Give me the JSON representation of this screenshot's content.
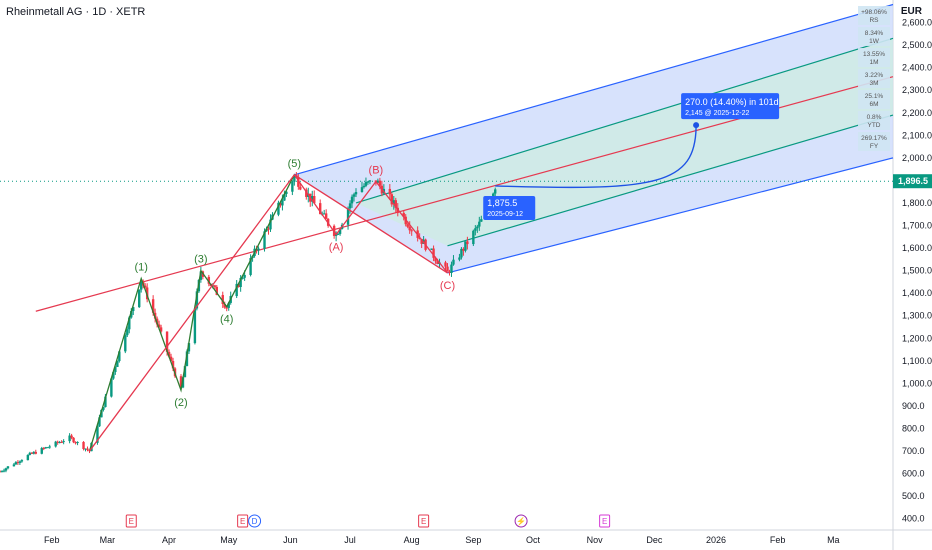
{
  "header": {
    "symbol": "Rheinmetall AG · 1D · XETR",
    "currency": "EUR"
  },
  "colors": {
    "up": "#089981",
    "down": "#f23645",
    "wave_green": "#2e7d32",
    "wave_red": "#e53950",
    "channel_blue": "#2962ff",
    "channel_fill": "#c9d8fb",
    "median_red": "#e53950",
    "inner_green": "#089981"
  },
  "chart_data": {
    "type": "candlestick",
    "title": "Rheinmetall AG · 1D · XETR",
    "y_axis": {
      "scale": "linear",
      "range": [
        350,
        2700
      ],
      "ticks": [
        400,
        500,
        600,
        700,
        800,
        900,
        1000,
        1100,
        1200,
        1300,
        1400,
        1500,
        1600,
        1700,
        1800,
        1900,
        2000,
        2100,
        2200,
        2300,
        2400,
        2500,
        2600
      ],
      "tick_labels": [
        "400.0",
        "500.0",
        "600.0",
        "700.0",
        "800.0",
        "900.0",
        "1,000.0",
        "1,100.0",
        "1,200.0",
        "1,300.0",
        "1,400.0",
        "1,500.0",
        "1,600.0",
        "1,700.0",
        "1,800.0",
        "1,900.0",
        "2,000.0",
        "2,100.0",
        "2,200.0",
        "2,300.0",
        "2,400.0",
        "2,500.0",
        "2,600.0"
      ]
    },
    "x_axis": {
      "range": [
        "2025-01-06",
        "2026-03-31"
      ],
      "ticks": [
        {
          "date": "2025-02-01",
          "label": "Feb"
        },
        {
          "date": "2025-03-01",
          "label": "Mar"
        },
        {
          "date": "2025-04-01",
          "label": "Apr"
        },
        {
          "date": "2025-05-01",
          "label": "May"
        },
        {
          "date": "2025-06-01",
          "label": "Jun"
        },
        {
          "date": "2025-07-01",
          "label": "Jul"
        },
        {
          "date": "2025-08-01",
          "label": "Aug"
        },
        {
          "date": "2025-09-01",
          "label": "Sep"
        },
        {
          "date": "2025-10-01",
          "label": "Oct"
        },
        {
          "date": "2025-11-01",
          "label": "Nov"
        },
        {
          "date": "2025-12-01",
          "label": "Dec"
        },
        {
          "date": "2026-01-01",
          "label": "2026"
        },
        {
          "date": "2026-02-01",
          "label": "Feb"
        },
        {
          "date": "2026-03-01",
          "label": "Ma"
        }
      ]
    },
    "last_price": {
      "value": 1896.5,
      "label": "1,896.5"
    },
    "price_anchors": [
      {
        "date": "2025-01-06",
        "value": 610
      },
      {
        "date": "2025-01-20",
        "value": 680
      },
      {
        "date": "2025-02-10",
        "value": 760
      },
      {
        "date": "2025-02-20",
        "value": 700
      },
      {
        "date": "2025-03-18",
        "value": 1460
      },
      {
        "date": "2025-04-07",
        "value": 970
      },
      {
        "date": "2025-04-17",
        "value": 1500
      },
      {
        "date": "2025-04-30",
        "value": 1340
      },
      {
        "date": "2025-06-03",
        "value": 1920
      },
      {
        "date": "2025-06-24",
        "value": 1660
      },
      {
        "date": "2025-07-04",
        "value": 1860
      },
      {
        "date": "2025-07-14",
        "value": 1900
      },
      {
        "date": "2025-07-31",
        "value": 1700
      },
      {
        "date": "2025-08-19",
        "value": 1490
      },
      {
        "date": "2025-09-05",
        "value": 1720
      },
      {
        "date": "2025-09-12",
        "value": 1876
      }
    ],
    "waves": [
      {
        "name": "impulse",
        "color": "wave_green",
        "points": [
          {
            "date": "2025-02-20",
            "value": 700
          },
          {
            "date": "2025-03-18",
            "value": 1465,
            "label": "(1)"
          },
          {
            "date": "2025-04-07",
            "value": 970,
            "label": "(2)"
          },
          {
            "date": "2025-04-17",
            "value": 1500,
            "label": "(3)"
          },
          {
            "date": "2025-04-30",
            "value": 1340,
            "label": "(4)"
          },
          {
            "date": "2025-06-03",
            "value": 1925,
            "label": "(5)"
          }
        ]
      },
      {
        "name": "correction",
        "color": "wave_red",
        "points": [
          {
            "date": "2025-06-03",
            "value": 1925
          },
          {
            "date": "2025-06-24",
            "value": 1660,
            "label": "(A)"
          },
          {
            "date": "2025-07-14",
            "value": 1895,
            "label": "(B)"
          },
          {
            "date": "2025-08-19",
            "value": 1490,
            "label": "(C)"
          }
        ]
      },
      {
        "name": "fork-frame",
        "color": "wave_red",
        "points": [
          {
            "date": "2025-02-20",
            "value": 700
          },
          {
            "date": "2025-06-03",
            "value": 1925
          },
          {
            "date": "2025-08-19",
            "value": 1490
          }
        ]
      }
    ],
    "pitchfork": {
      "median": [
        {
          "date": "2025-01-24",
          "value": 1320
        },
        {
          "date": "2026-03-31",
          "value": 2360
        }
      ],
      "upper": [
        {
          "date": "2025-06-03",
          "value": 1925
        },
        {
          "date": "2026-03-31",
          "value": 2680
        }
      ],
      "lower": [
        {
          "date": "2025-08-19",
          "value": 1490
        },
        {
          "date": "2026-03-31",
          "value": 2000
        }
      ],
      "inner_upper": [
        {
          "date": "2025-07-04",
          "value": 1800
        },
        {
          "date": "2026-03-31",
          "value": 2530
        }
      ],
      "inner_lower": [
        {
          "date": "2025-08-19",
          "value": 1610
        },
        {
          "date": "2026-03-31",
          "value": 2190
        }
      ]
    },
    "projection": {
      "from": {
        "date": "2025-09-12",
        "value": 1875.5
      },
      "to": {
        "date": "2025-12-22",
        "value": 2145
      },
      "label_main": "270.0 (14.40%) in 101d",
      "label_sub": "2,145 @ 2025-12-22",
      "start_label": "1,875.5",
      "start_date_label": "2025-09-12"
    },
    "events": [
      {
        "date": "2025-03-13",
        "label": "E",
        "type": "earnings"
      },
      {
        "date": "2025-05-08",
        "label": "E",
        "type": "earnings"
      },
      {
        "date": "2025-05-14",
        "label": "D",
        "type": "dividend"
      },
      {
        "date": "2025-08-07",
        "label": "E",
        "type": "earnings"
      },
      {
        "date": "2025-09-25",
        "label": "⚡",
        "type": "split"
      },
      {
        "date": "2025-11-06",
        "label": "E",
        "type": "earnings-future"
      }
    ],
    "performance": [
      {
        "value": "+98.06%",
        "period": "RS"
      },
      {
        "value": "8.34%",
        "period": "1W"
      },
      {
        "value": "13.55%",
        "period": "1M"
      },
      {
        "value": "3.22%",
        "period": "3M"
      },
      {
        "value": "25.1%",
        "period": "6M"
      },
      {
        "value": "0.8%",
        "period": "YTD"
      },
      {
        "value": "269.17%",
        "period": "FY"
      }
    ]
  }
}
